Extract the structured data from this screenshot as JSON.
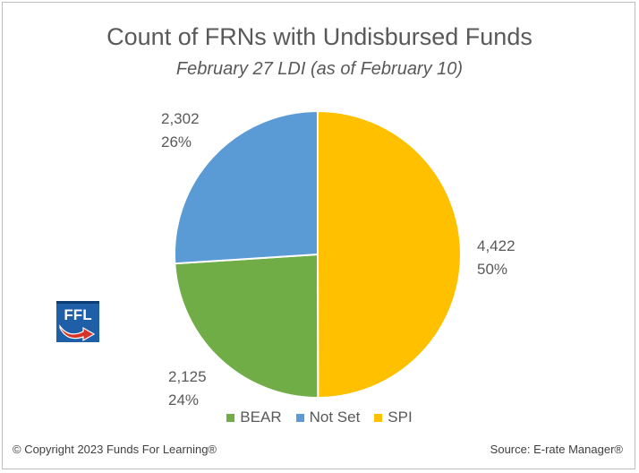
{
  "chart_data": {
    "type": "pie",
    "title": "Count of FRNs with Undisbursed Funds",
    "subtitle": "February 27 LDI (as of February 10)",
    "slices": [
      {
        "name": "SPI",
        "value": 4422,
        "label": "4,422",
        "percent": "50%",
        "color": "#FFC000"
      },
      {
        "name": "BEAR",
        "value": 2125,
        "label": "2,125",
        "percent": "24%",
        "color": "#70AD47"
      },
      {
        "name": "Not Set",
        "value": 2302,
        "label": "2,302",
        "percent": "26%",
        "color": "#5B9BD5"
      }
    ],
    "legend": [
      "BEAR",
      "Not Set",
      "SPI"
    ],
    "legend_position": "bottom"
  },
  "logo": {
    "text": "FFL",
    "icon": "ffl-logo-icon"
  },
  "footer": {
    "copyright": "© Copyright 2023 Funds For Learning®",
    "source": "Source: E-rate Manager®"
  }
}
